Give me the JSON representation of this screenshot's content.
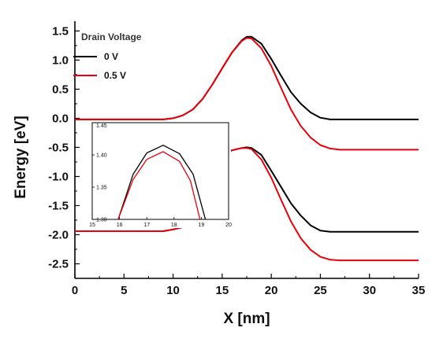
{
  "chart_data": {
    "type": "line",
    "title": "",
    "xlabel": "X [nm]",
    "ylabel": "Energy [eV]",
    "xlim": [
      0,
      35
    ],
    "ylim": [
      -2.75,
      1.6
    ],
    "xticks": [
      0,
      5,
      10,
      15,
      20,
      25,
      30,
      35
    ],
    "xtick_labels": [
      "0",
      "5",
      "10",
      "15",
      "20",
      "25",
      "30",
      "35"
    ],
    "yticks": [
      1.5,
      1.0,
      0.5,
      0.0,
      -0.5,
      -1.0,
      -1.5,
      -2.0,
      -2.5
    ],
    "ytick_labels": [
      "1.5",
      "1.0",
      "0.5",
      "0.0",
      "-0.5",
      "-1.0",
      "-1.5",
      "-2.0",
      "-2.5"
    ],
    "grid": false,
    "legend": {
      "title": "Drain Voltage",
      "placement": "top-left",
      "entries": [
        "0 V",
        "0.5 V"
      ]
    },
    "series": [
      {
        "name": "0 V",
        "band": "conduction",
        "color": "#000000",
        "x": [
          0,
          9,
          10,
          11,
          12,
          13,
          14,
          15,
          16,
          17,
          17.5,
          18,
          19,
          20,
          21,
          22,
          23,
          24,
          25,
          26,
          27,
          35
        ],
        "y": [
          -0.02,
          -0.02,
          0.0,
          0.05,
          0.15,
          0.33,
          0.58,
          0.86,
          1.13,
          1.34,
          1.4,
          1.4,
          1.28,
          1.02,
          0.73,
          0.45,
          0.25,
          0.1,
          0.01,
          -0.02,
          -0.02,
          -0.02
        ]
      },
      {
        "name": "0.5 V",
        "band": "conduction",
        "color": "#e8000b",
        "x": [
          0,
          9,
          10,
          11,
          12,
          13,
          14,
          15,
          16,
          17,
          17.5,
          18,
          19,
          20,
          21,
          22,
          23,
          24,
          25,
          26,
          27,
          28,
          35
        ],
        "y": [
          -0.02,
          -0.02,
          0.0,
          0.05,
          0.15,
          0.33,
          0.58,
          0.86,
          1.13,
          1.33,
          1.38,
          1.37,
          1.2,
          0.9,
          0.52,
          0.15,
          -0.13,
          -0.33,
          -0.46,
          -0.52,
          -0.54,
          -0.54,
          -0.54
        ]
      },
      {
        "name": "0 V",
        "band": "valence",
        "color": "#000000",
        "x": [
          0,
          9,
          10,
          11,
          15,
          16,
          17,
          17.5,
          18,
          19,
          20,
          21,
          22,
          23,
          24,
          25,
          26,
          27,
          35
        ],
        "y": [
          -1.94,
          -1.94,
          -1.91,
          -1.87,
          -0.66,
          -0.55,
          -0.51,
          -0.5,
          -0.51,
          -0.63,
          -0.9,
          -1.18,
          -1.46,
          -1.67,
          -1.84,
          -1.93,
          -1.95,
          -1.95,
          -1.95
        ]
      },
      {
        "name": "0.5 V",
        "band": "valence",
        "color": "#e8000b",
        "x": [
          0,
          9,
          10,
          11,
          15,
          16,
          17,
          17.5,
          18,
          19,
          20,
          21,
          22,
          23,
          24,
          25,
          26,
          27,
          28,
          35
        ],
        "y": [
          -1.94,
          -1.94,
          -1.91,
          -1.87,
          -0.66,
          -0.55,
          -0.51,
          -0.51,
          -0.53,
          -0.71,
          -1.02,
          -1.4,
          -1.77,
          -2.06,
          -2.26,
          -2.38,
          -2.43,
          -2.44,
          -2.44,
          -2.44
        ]
      }
    ],
    "inset": {
      "xlim": [
        15,
        20
      ],
      "ylim": [
        1.3,
        1.45
      ],
      "xticks": [
        15,
        16,
        17,
        18,
        19,
        20
      ],
      "xtick_labels": [
        "15",
        "16",
        "17",
        "18",
        "19",
        "20"
      ],
      "yticks": [
        1.3,
        1.35,
        1.4,
        1.45
      ],
      "ytick_labels": [
        "1.30",
        "1.35",
        "1.40",
        "1.45"
      ],
      "series": [
        {
          "name": "0 V",
          "color": "#000000",
          "x": [
            15.95,
            16.5,
            17,
            17.6,
            18.2,
            18.7,
            19.15
          ],
          "y": [
            1.3,
            1.37,
            1.403,
            1.415,
            1.402,
            1.37,
            1.3
          ]
        },
        {
          "name": "0.5 V",
          "color": "#e8000b",
          "x": [
            15.95,
            16.5,
            17,
            17.6,
            18.2,
            18.6,
            18.95
          ],
          "y": [
            1.3,
            1.362,
            1.393,
            1.405,
            1.39,
            1.36,
            1.3
          ]
        }
      ]
    }
  }
}
